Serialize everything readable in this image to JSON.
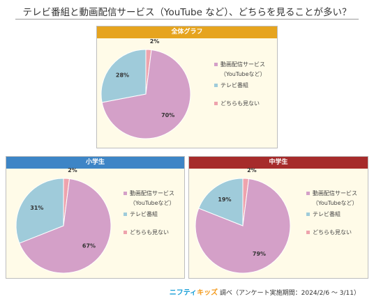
{
  "title": "テレビ番組と動画配信サービス（YouTube など）、どちらを見ることが多い？",
  "colors": {
    "video": "#d4a0c8",
    "tv": "#9fcbda",
    "neither": "#eea3ad"
  },
  "chart_data": [
    {
      "type": "pie",
      "title": "全体グラフ",
      "header_color": "#e6a41e",
      "series": [
        "動画配信サービス（YouTubeなど）",
        "テレビ番組",
        "どちらも見ない"
      ],
      "values": [
        70,
        28,
        2
      ],
      "labels": [
        "70%",
        "28%",
        "2%"
      ]
    },
    {
      "type": "pie",
      "title": "小学生",
      "header_color": "#3d85c6",
      "series": [
        "動画配信サービス（YouTubeなど）",
        "テレビ番組",
        "どちらも見ない"
      ],
      "values": [
        67,
        31,
        2
      ],
      "labels": [
        "67%",
        "31%",
        "2%"
      ]
    },
    {
      "type": "pie",
      "title": "中学生",
      "header_color": "#a62b2b",
      "series": [
        "動画配信サービス（YouTubeなど）",
        "テレビ番組",
        "どちらも見ない"
      ],
      "values": [
        79,
        19,
        2
      ],
      "labels": [
        "79%",
        "19%",
        "2%"
      ]
    }
  ],
  "legend": {
    "video_line1": "動画配信サービス",
    "video_line2": "（YouTubeなど）",
    "tv": "テレビ番組",
    "neither": "どちらも見ない"
  },
  "footer": {
    "logo_a": "ニフティ",
    "logo_b": "キッズ",
    "text": "調べ（アンケート実施期間：2024/2/6 ～ 3/11）"
  }
}
